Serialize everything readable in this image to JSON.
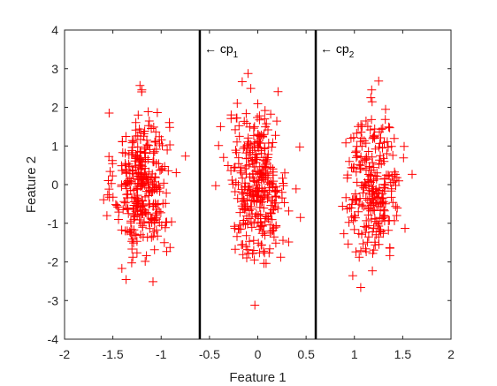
{
  "chart_data": {
    "type": "scatter",
    "xlabel": "Feature 1",
    "ylabel": "Feature 2",
    "xlim": [
      -2,
      2
    ],
    "ylim": [
      -4,
      4
    ],
    "x_ticks": [
      "-2",
      "-1.5",
      "-1",
      "-0.5",
      "0",
      "0.5",
      "1",
      "1.5",
      "2"
    ],
    "y_ticks": [
      "-4",
      "-3",
      "-2",
      "-1",
      "0",
      "1",
      "2",
      "3",
      "4"
    ],
    "grid": false,
    "marker": "+",
    "marker_color": "#ff0000",
    "clusters": [
      {
        "x_center": -1.2,
        "x_std": 0.14,
        "y_center": 0.0,
        "y_std": 0.95,
        "count": 330
      },
      {
        "x_center": 0.0,
        "x_std": 0.15,
        "y_center": 0.0,
        "y_std": 0.95,
        "count": 330
      },
      {
        "x_center": 1.2,
        "x_std": 0.14,
        "y_center": 0.0,
        "y_std": 0.95,
        "count": 260
      }
    ],
    "reference_lines": [
      {
        "x": -0.6,
        "label": "← cp",
        "subscript": "1",
        "color": "#000000"
      },
      {
        "x": 0.6,
        "label": "← cp",
        "subscript": "2",
        "color": "#000000"
      }
    ]
  }
}
